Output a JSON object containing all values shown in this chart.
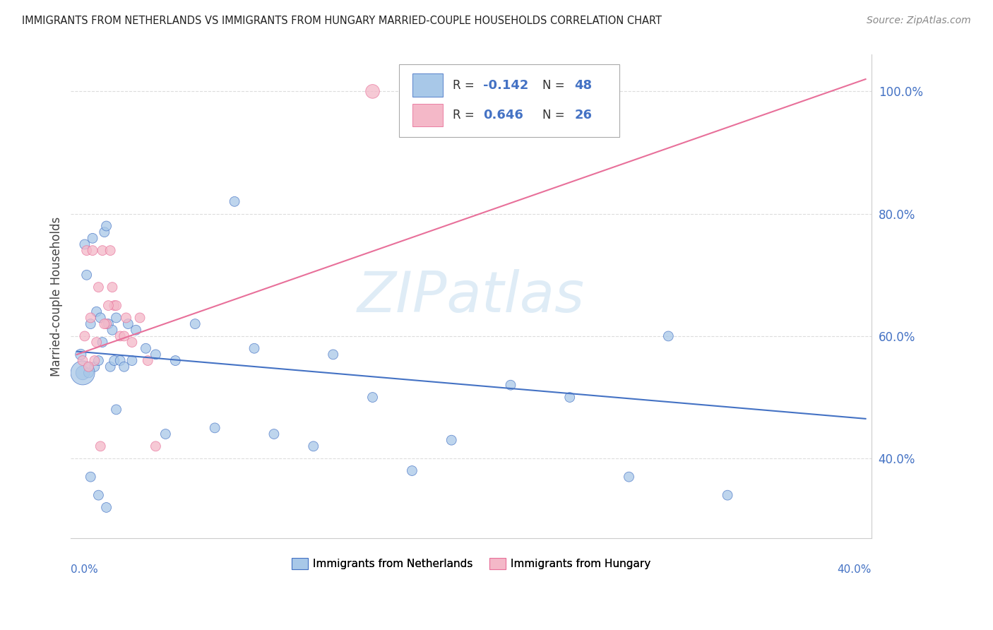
{
  "title": "IMMIGRANTS FROM NETHERLANDS VS IMMIGRANTS FROM HUNGARY MARRIED-COUPLE HOUSEHOLDS CORRELATION CHART",
  "source": "Source: ZipAtlas.com",
  "ylabel": "Married-couple Households",
  "ytick_labels": [
    "40.0%",
    "60.0%",
    "80.0%",
    "100.0%"
  ],
  "ytick_values": [
    0.4,
    0.6,
    0.8,
    1.0
  ],
  "xlim": [
    0.0,
    0.4
  ],
  "ylim": [
    0.27,
    1.06
  ],
  "color_netherlands": "#a8c8e8",
  "color_hungary": "#f4b8c8",
  "line_color_netherlands": "#4472c4",
  "line_color_hungary": "#e8709a",
  "legend_r1": "-0.142",
  "legend_n1": "48",
  "legend_r2": "0.646",
  "legend_n2": "26",
  "bottom_legend_label1": "Immigrants from Netherlands",
  "bottom_legend_label2": "Immigrants from Hungary",
  "nl_line_x0": 0.0,
  "nl_line_y0": 0.575,
  "nl_line_x1": 0.4,
  "nl_line_y1": 0.465,
  "hu_line_x0": 0.0,
  "hu_line_y0": 0.57,
  "hu_line_x1": 0.4,
  "hu_line_y1": 1.02,
  "nl_x": [
    0.002,
    0.003,
    0.004,
    0.005,
    0.006,
    0.007,
    0.008,
    0.009,
    0.01,
    0.011,
    0.012,
    0.013,
    0.014,
    0.015,
    0.016,
    0.017,
    0.018,
    0.019,
    0.02,
    0.022,
    0.024,
    0.026,
    0.028,
    0.03,
    0.035,
    0.04,
    0.045,
    0.05,
    0.06,
    0.07,
    0.08,
    0.09,
    0.1,
    0.12,
    0.13,
    0.15,
    0.17,
    0.19,
    0.22,
    0.25,
    0.28,
    0.3,
    0.33,
    0.003,
    0.007,
    0.011,
    0.015,
    0.02
  ],
  "nl_y": [
    0.57,
    0.54,
    0.75,
    0.7,
    0.54,
    0.62,
    0.76,
    0.55,
    0.64,
    0.56,
    0.63,
    0.59,
    0.77,
    0.78,
    0.62,
    0.55,
    0.61,
    0.56,
    0.63,
    0.56,
    0.55,
    0.62,
    0.56,
    0.61,
    0.58,
    0.57,
    0.44,
    0.56,
    0.62,
    0.45,
    0.82,
    0.58,
    0.44,
    0.42,
    0.57,
    0.5,
    0.38,
    0.43,
    0.52,
    0.5,
    0.37,
    0.6,
    0.34,
    0.54,
    0.37,
    0.34,
    0.32,
    0.48
  ],
  "nl_sizes": [
    120,
    200,
    100,
    100,
    100,
    100,
    100,
    100,
    100,
    100,
    100,
    100,
    100,
    100,
    100,
    100,
    100,
    100,
    100,
    100,
    100,
    100,
    100,
    100,
    100,
    100,
    100,
    100,
    100,
    100,
    100,
    100,
    100,
    100,
    100,
    100,
    100,
    100,
    100,
    100,
    100,
    100,
    100,
    600,
    100,
    100,
    100,
    100
  ],
  "hu_x": [
    0.003,
    0.005,
    0.007,
    0.009,
    0.011,
    0.013,
    0.015,
    0.017,
    0.019,
    0.022,
    0.025,
    0.028,
    0.032,
    0.036,
    0.01,
    0.014,
    0.018,
    0.006,
    0.004,
    0.008,
    0.012,
    0.02,
    0.016,
    0.024,
    0.04,
    0.15
  ],
  "hu_y": [
    0.56,
    0.74,
    0.63,
    0.56,
    0.68,
    0.74,
    0.62,
    0.74,
    0.65,
    0.6,
    0.63,
    0.59,
    0.63,
    0.56,
    0.59,
    0.62,
    0.68,
    0.55,
    0.6,
    0.74,
    0.42,
    0.65,
    0.65,
    0.6,
    0.42,
    1.0
  ],
  "hu_sizes": [
    100,
    100,
    100,
    100,
    100,
    100,
    100,
    100,
    100,
    100,
    100,
    100,
    100,
    100,
    100,
    100,
    100,
    100,
    100,
    100,
    100,
    100,
    100,
    100,
    100,
    200
  ]
}
